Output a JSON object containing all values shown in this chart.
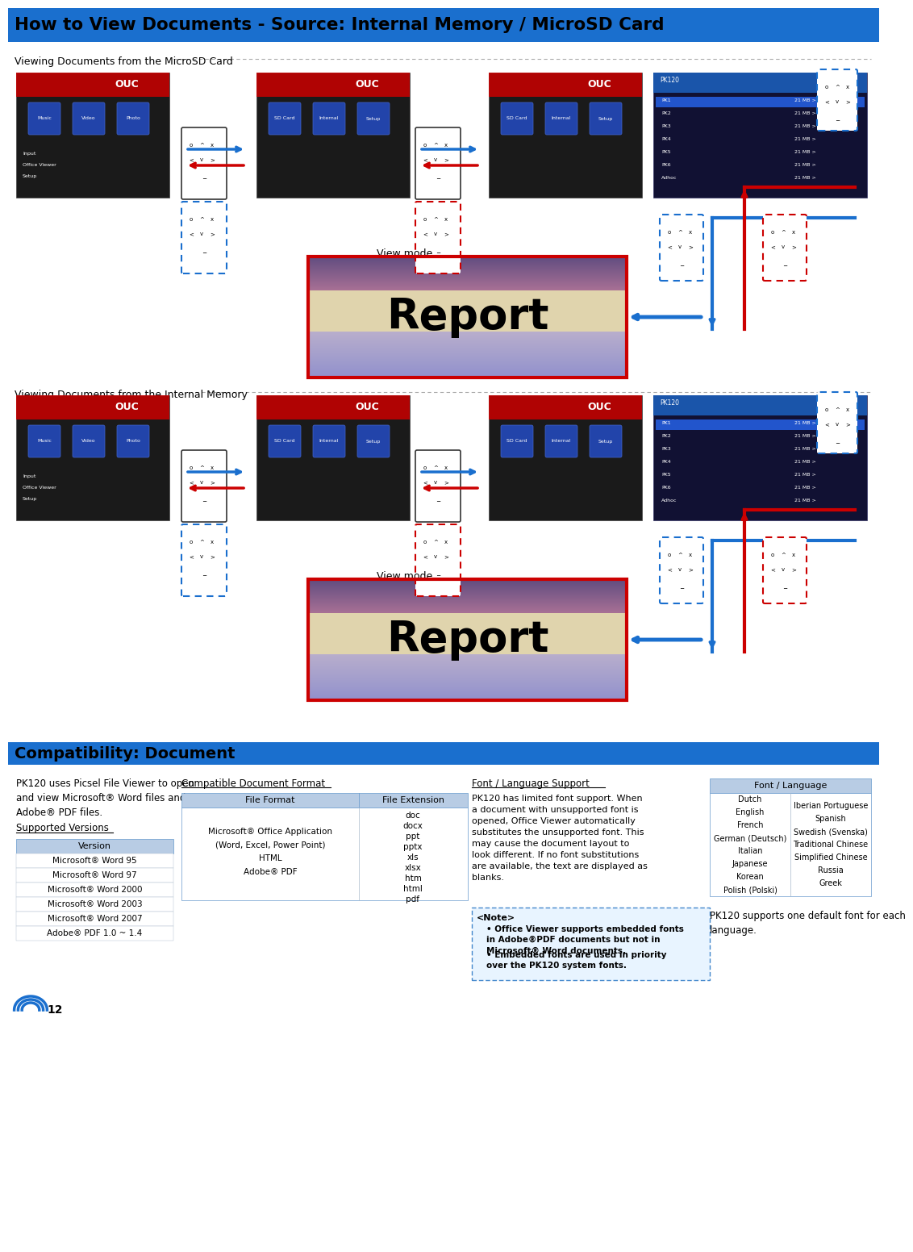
{
  "title": "How to View Documents - Source: Internal Memory / MicroSD Card",
  "title_bg": "#1a6fce",
  "section1_label": "Viewing Documents from the MicroSD Card",
  "section2_label": "Viewing Documents from the Internal Memory",
  "compat_title": "Compatibility: Document",
  "compat_bg": "#1a6fce",
  "body_text_left": "PK120 uses Picsel File Viewer to open\nand view Microsoft® Word files and\nAdobe® PDF files.",
  "supported_versions_title": "Supported Versions",
  "version_header": "Version",
  "versions": [
    "Microsoft® Word 95",
    "Microsoft® Word 97",
    "Microsoft® Word 2000",
    "Microsoft® Word 2003",
    "Microsoft® Word 2007",
    "Adobe® PDF 1.0 ~ 1.4"
  ],
  "compat_format_title": "Compatible Document Format",
  "file_format_header": "File Format",
  "file_ext_header": "File Extension",
  "file_format_content": "Microsoft® Office Application\n(Word, Excel, Power Point)\nHTML\nAdobe® PDF",
  "file_ext_content": "doc\ndocx\nppt\npptx\nxls\nxlsx\nhtm\nhtml\npdf",
  "font_lang_title": "Font / Language Support",
  "font_lang_body": "PK120 has limited font support. When\na document with unsupported font is\nopened, Office Viewer automatically\nsubstitutes the unsupported font. This\nmay cause the document layout to\nlook different. If no font substitutions\nare available, the text are displayed as\nblanks.",
  "note_title": "<Note>",
  "note_bullets": [
    "Office Viewer supports embedded fonts\nin Adobe®PDF documents but not in\nMicrosoft® Word documents.",
    "Embedded fonts are used in priority\nover the PK120 system fonts."
  ],
  "font_lang_table_title": "Font / Language",
  "font_lang_left": [
    "Dutch",
    "English",
    "French",
    "German (Deutsch)",
    "Italian",
    "Japanese",
    "Korean",
    "Polish (Polski)"
  ],
  "font_lang_right": [
    "Iberian Portuguese",
    "Spanish",
    "Swedish (Svenska)",
    "Traditional Chinese",
    "Simplified Chinese",
    "Russia",
    "Greek"
  ],
  "support_text": "PK120 supports one default font for each\nlanguage.",
  "view_mode_label": "View mode",
  "page_num": "12",
  "bg_color": "#ffffff",
  "dotted_line_color": "#aaaaaa",
  "blue_color": "#1a6fce",
  "red_color": "#cc0000"
}
